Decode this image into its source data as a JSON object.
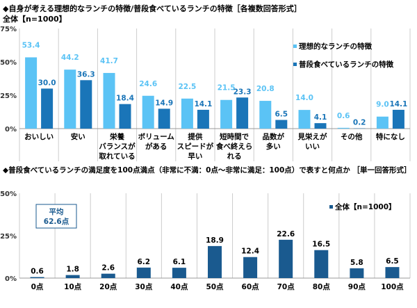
{
  "chart_data": [
    {
      "type": "bar",
      "title": "◆自身が考える理想的なランチの特徴/普段食べているランチの特徴［各複数回答形式］",
      "subtitle": "全体【n=1000】",
      "categories": [
        [
          "おいしい"
        ],
        [
          "安い"
        ],
        [
          "栄養",
          "バランスが",
          "取れている"
        ],
        [
          "ボリューム",
          "がある"
        ],
        [
          "提供",
          "スピードが",
          "早い"
        ],
        [
          "短時間で",
          "食べ終えら",
          "れる"
        ],
        [
          "品数が",
          "多い"
        ],
        [
          "見栄えが",
          "いい"
        ],
        [
          "その他"
        ],
        [
          "特になし"
        ]
      ],
      "series": [
        {
          "name": "理想的なランチの特徴",
          "color": "#5bc3f5",
          "values": [
            53.4,
            44.2,
            41.7,
            24.6,
            22.5,
            21.5,
            20.8,
            14.0,
            0.6,
            9.0
          ]
        },
        {
          "name": "普段食べているランチの特徴",
          "color": "#1a75b8",
          "values": [
            30.0,
            36.3,
            18.4,
            14.9,
            14.1,
            23.3,
            6.5,
            4.1,
            0.2,
            14.1
          ]
        }
      ],
      "yticks": [
        "0%",
        "25%",
        "50%",
        "75%"
      ],
      "ylim": [
        0,
        75
      ],
      "legend": "top-right",
      "grid": false
    },
    {
      "type": "bar",
      "title": "◆普段食べているランチの満足度を100点満点（非常に不満：0点～非常に満足：100点）で表すと何点か ［単一回答形式］",
      "categories": [
        "0点",
        "10点",
        "20点",
        "30点",
        "40点",
        "50点",
        "60点",
        "70点",
        "80点",
        "90点",
        "100点"
      ],
      "series": [
        {
          "name": "全体【n=1000】",
          "color": "#1a5a8f",
          "values": [
            0.6,
            1.8,
            2.6,
            6.2,
            6.1,
            18.9,
            12.4,
            22.6,
            16.5,
            5.8,
            6.5
          ]
        }
      ],
      "yticks": [
        "0%",
        "25%",
        "50%"
      ],
      "ylim": [
        0,
        50
      ],
      "annotation": [
        "平均",
        "62.6点"
      ],
      "legend": "top-right",
      "grid": false
    }
  ]
}
